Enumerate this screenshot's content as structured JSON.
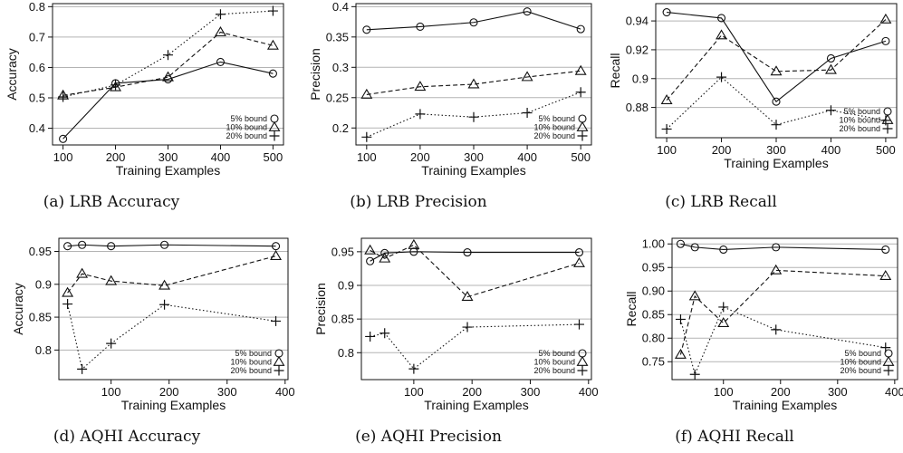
{
  "legend_labels": [
    "5% bound",
    "10% bound",
    "20% bound"
  ],
  "chart_data": [
    {
      "type": "line",
      "caption": "(a) LRB Accuracy",
      "xlabel": "Training Examples",
      "ylabel": "Accuracy",
      "x": [
        100,
        200,
        300,
        400,
        500
      ],
      "xticks": [
        100,
        200,
        300,
        400,
        500
      ],
      "xlim": [
        80,
        520
      ],
      "yticks": [
        0.4,
        0.5,
        0.6,
        0.7,
        0.8
      ],
      "ylim": [
        0.345,
        0.81
      ],
      "grid": "horizontal",
      "legend_position": "bottom-right",
      "series": [
        {
          "name": "5% bound",
          "marker": "circle",
          "dash": "solid",
          "values": [
            0.365,
            0.548,
            0.561,
            0.618,
            0.58
          ]
        },
        {
          "name": "10% bound",
          "marker": "triangle",
          "dash": "dashed",
          "values": [
            0.508,
            0.535,
            0.568,
            0.716,
            0.672
          ]
        },
        {
          "name": "20% bound",
          "marker": "plus",
          "dash": "dotted",
          "values": [
            0.503,
            0.542,
            0.641,
            0.775,
            0.786
          ]
        }
      ]
    },
    {
      "type": "line",
      "caption": "(b) LRB Precision",
      "xlabel": "Training Examples",
      "ylabel": "Precision",
      "x": [
        100,
        200,
        300,
        400,
        500
      ],
      "xticks": [
        100,
        200,
        300,
        400,
        500
      ],
      "xlim": [
        80,
        520
      ],
      "yticks": [
        0.2,
        0.25,
        0.3,
        0.35,
        0.4
      ],
      "ylim": [
        0.172,
        0.405
      ],
      "grid": "horizontal",
      "legend_position": "bottom-right",
      "series": [
        {
          "name": "5% bound",
          "marker": "circle",
          "dash": "solid",
          "values": [
            0.362,
            0.367,
            0.374,
            0.392,
            0.363
          ]
        },
        {
          "name": "10% bound",
          "marker": "triangle",
          "dash": "dashed",
          "values": [
            0.255,
            0.268,
            0.272,
            0.284,
            0.294
          ]
        },
        {
          "name": "20% bound",
          "marker": "plus",
          "dash": "dotted",
          "values": [
            0.185,
            0.223,
            0.218,
            0.225,
            0.259
          ]
        }
      ]
    },
    {
      "type": "line",
      "caption": "(c) LRB Recall",
      "xlabel": "Training Examples",
      "ylabel": "Recall",
      "x": [
        100,
        200,
        300,
        400,
        500
      ],
      "xticks": [
        100,
        200,
        300,
        400,
        500
      ],
      "xlim": [
        80,
        520
      ],
      "yticks": [
        0.88,
        0.9,
        0.92,
        0.94
      ],
      "ylim": [
        0.859,
        0.952
      ],
      "grid": "horizontal",
      "legend_position": "bottom-right",
      "series": [
        {
          "name": "5% bound",
          "marker": "circle",
          "dash": "solid",
          "values": [
            0.946,
            0.942,
            0.884,
            0.914,
            0.926
          ]
        },
        {
          "name": "10% bound",
          "marker": "triangle",
          "dash": "dashed",
          "values": [
            0.885,
            0.93,
            0.905,
            0.906,
            0.941
          ]
        },
        {
          "name": "20% bound",
          "marker": "plus",
          "dash": "dotted",
          "values": [
            0.865,
            0.901,
            0.868,
            0.878,
            0.871
          ]
        }
      ]
    },
    {
      "type": "line",
      "caption": "(d) AQHI Accuracy",
      "xlabel": "Training Examples",
      "ylabel": "Accuracy",
      "x": [
        25,
        50,
        100,
        192,
        384
      ],
      "xticks": [
        100,
        200,
        300,
        400
      ],
      "xlim": [
        10,
        405
      ],
      "yticks": [
        0.8,
        0.85,
        0.9,
        0.95
      ],
      "ylim": [
        0.755,
        0.97
      ],
      "grid": "horizontal",
      "legend_position": "bottom-right",
      "series": [
        {
          "name": "5% bound",
          "marker": "circle",
          "dash": "solid",
          "values": [
            0.958,
            0.96,
            0.958,
            0.96,
            0.958
          ]
        },
        {
          "name": "10% bound",
          "marker": "triangle",
          "dash": "dashed",
          "values": [
            0.887,
            0.916,
            0.905,
            0.898,
            0.943
          ]
        },
        {
          "name": "20% bound",
          "marker": "plus",
          "dash": "dotted",
          "values": [
            0.87,
            0.771,
            0.81,
            0.869,
            0.844
          ]
        }
      ]
    },
    {
      "type": "line",
      "caption": "(e) AQHI Precision",
      "xlabel": "Training Examples",
      "ylabel": "Precision",
      "x": [
        25,
        50,
        100,
        192,
        384
      ],
      "xticks": [
        100,
        200,
        300,
        400
      ],
      "xlim": [
        10,
        405
      ],
      "yticks": [
        0.8,
        0.85,
        0.9,
        0.95
      ],
      "ylim": [
        0.76,
        0.97
      ],
      "grid": "horizontal",
      "legend_position": "bottom-right",
      "series": [
        {
          "name": "5% bound",
          "marker": "circle",
          "dash": "solid",
          "values": [
            0.936,
            0.948,
            0.95,
            0.949,
            0.949
          ]
        },
        {
          "name": "10% bound",
          "marker": "triangle",
          "dash": "dashed",
          "values": [
            0.952,
            0.94,
            0.96,
            0.883,
            0.933
          ]
        },
        {
          "name": "20% bound",
          "marker": "plus",
          "dash": "dotted",
          "values": [
            0.824,
            0.829,
            0.776,
            0.838,
            0.842
          ]
        }
      ]
    },
    {
      "type": "line",
      "caption": "(f) AQHI Recall",
      "xlabel": "Training Examples",
      "ylabel": "Recall",
      "x": [
        25,
        50,
        100,
        192,
        384
      ],
      "xticks": [
        100,
        200,
        300,
        400
      ],
      "xlim": [
        10,
        405
      ],
      "yticks": [
        0.75,
        0.8,
        0.85,
        0.9,
        0.95,
        1.0
      ],
      "ytick_labels": [
        "0.75",
        "0.80",
        "0.85",
        "0.90",
        "0.95",
        "1.00"
      ],
      "ylim": [
        0.712,
        1.012
      ],
      "grid": "horizontal",
      "legend_position": "bottom-right",
      "series": [
        {
          "name": "5% bound",
          "marker": "circle",
          "dash": "solid",
          "values": [
            1.0,
            0.993,
            0.988,
            0.993,
            0.988
          ]
        },
        {
          "name": "10% bound",
          "marker": "triangle",
          "dash": "dashed",
          "values": [
            0.765,
            0.889,
            0.832,
            0.944,
            0.932
          ]
        },
        {
          "name": "20% bound",
          "marker": "plus",
          "dash": "dotted",
          "values": [
            0.84,
            0.723,
            0.866,
            0.818,
            0.78
          ]
        }
      ]
    }
  ]
}
